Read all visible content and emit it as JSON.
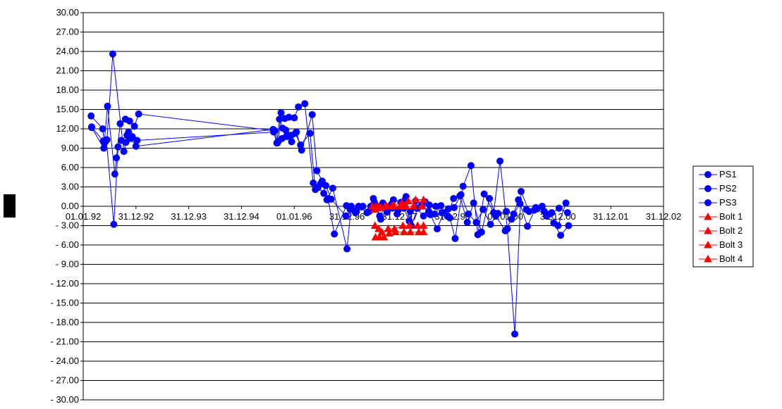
{
  "chart_data": {
    "type": "line",
    "title": "",
    "xlabel": "",
    "ylabel": "",
    "ylim": [
      -30,
      30
    ],
    "y_step": 3,
    "y_ticks": [
      "30.00",
      "27.00",
      "24.00",
      "21.00",
      "18.00",
      "15.00",
      "12.00",
      "9.00",
      "6.00",
      "3.00",
      "0.00",
      "- 3.00",
      "- 6.00",
      "- 9.00",
      "- 12.00",
      "- 15.00",
      "- 18.00",
      "- 21.00",
      "- 24.00",
      "- 27.00",
      "- 30.00"
    ],
    "x_ticks": [
      "01.01.92",
      "31.12.92",
      "31.12.93",
      "31.12.94",
      "01.01.96",
      "31.12.96",
      "31.12.97",
      "31.12.98",
      "01.01.00",
      "31.12.00",
      "31.12.01",
      "31.12.02"
    ],
    "x_tick_values": [
      1992.0,
      1993.0,
      1994.0,
      1995.0,
      1996.0,
      1997.0,
      1998.0,
      1999.0,
      2000.0,
      2001.0,
      2002.0,
      2003.0
    ],
    "xlim": [
      1992.0,
      2003.0
    ],
    "grid": "horizontal",
    "legend_position": "right",
    "series": [
      {
        "name": "PS1",
        "color": "#0000ff",
        "marker": "circle",
        "x": [
          1992.16,
          1992.39,
          1992.42,
          1992.45,
          1992.56,
          1992.77,
          1992.81,
          1992.86,
          1992.93,
          1993.02,
          1995.61,
          1995.67,
          1995.72,
          1995.78,
          1995.86,
          1995.95,
          1996.04,
          1996.14,
          1996.34,
          1996.43,
          1996.53,
          1996.62,
          1996.73,
          1997.0,
          1997.08,
          1997.18,
          1997.3,
          1997.45,
          1997.55,
          1997.68,
          1997.78,
          1997.88,
          1998.02,
          1998.12,
          1998.22,
          1998.34,
          1998.48,
          1998.58,
          1998.71,
          1998.83,
          1998.95,
          1999.05,
          1999.2,
          1999.35,
          1999.48,
          1999.6,
          1999.78,
          1999.9,
          2000.04,
          2000.18,
          2000.3,
          2000.45,
          2000.6,
          2000.78,
          2000.92,
          2001.05,
          2001.2
        ],
        "y": [
          12.2,
          9.0,
          10.0,
          10.3,
          23.6,
          8.5,
          9.9,
          11.5,
          10.8,
          10.2,
          11.5,
          9.8,
          13.5,
          12.1,
          10.8,
          10.0,
          11.5,
          8.7,
          14.2,
          5.5,
          3.9,
          1.0,
          2.8,
          -6.6,
          0.0,
          -0.8,
          0.0,
          0.0,
          0.0,
          0.5,
          -0.4,
          1.0,
          0.6,
          1.5,
          -3.0,
          -0.3,
          0.7,
          -1.3,
          -3.5,
          -1.0,
          -1.8,
          -5.0,
          3.1,
          6.3,
          -4.4,
          1.9,
          -1.0,
          7.0,
          -3.5,
          -19.8,
          2.3,
          -0.8,
          -0.4,
          -1.5,
          -2.6,
          -4.5,
          -3.0
        ]
      },
      {
        "name": "PS2",
        "color": "#0000ff",
        "marker": "circle",
        "x": [
          1992.15,
          1992.37,
          1992.4,
          1992.46,
          1992.6,
          1992.63,
          1992.7,
          1992.8,
          1992.88,
          1992.97,
          1993.05,
          1995.63,
          1995.7,
          1995.75,
          1995.82,
          1995.9,
          1996.0,
          1996.08,
          1996.2,
          1996.36,
          1996.45,
          1996.56,
          1996.64,
          1996.76,
          1996.99,
          1997.1,
          1997.22,
          1997.38,
          1997.5,
          1997.62,
          1997.74,
          1997.85,
          1997.95,
          1998.08,
          1998.18,
          1998.3,
          1998.42,
          1998.55,
          1998.66,
          1998.78,
          1998.9,
          1999.02,
          1999.14,
          1999.28,
          1999.4,
          1999.55,
          1999.7,
          1999.82,
          2000.0,
          2000.12,
          2000.25,
          2000.4,
          2000.55,
          2000.7,
          2000.85,
          2001.0,
          2001.15
        ],
        "y": [
          14.0,
          12.0,
          9.8,
          15.5,
          5.0,
          7.5,
          12.8,
          13.5,
          13.2,
          12.4,
          14.3,
          11.7,
          10.1,
          14.5,
          13.6,
          13.8,
          13.7,
          15.4,
          15.9,
          3.6,
          2.9,
          2.0,
          1.2,
          -4.3,
          0.1,
          -0.5,
          0.0,
          -1.0,
          1.2,
          -1.5,
          0.0,
          0.4,
          -1.2,
          -0.3,
          -2.3,
          0.8,
          0.3,
          -0.8,
          -1.2,
          0.1,
          -1.5,
          1.2,
          1.6,
          -2.5,
          0.5,
          -4.0,
          1.2,
          -1.5,
          -3.8,
          -2.0,
          1.0,
          -0.5,
          -0.6,
          0.0,
          -1.2,
          -3.0,
          0.5
        ]
      },
      {
        "name": "PS3",
        "color": "#0000ff",
        "marker": "circle",
        "x": [
          1992.16,
          1992.38,
          1992.44,
          1992.58,
          1992.66,
          1992.72,
          1992.83,
          1992.9,
          1993.0,
          1995.6,
          1995.68,
          1995.77,
          1995.84,
          1995.93,
          1996.02,
          1996.12,
          1996.3,
          1996.4,
          1996.5,
          1996.6,
          1996.7,
          1996.98,
          1997.06,
          1997.16,
          1997.28,
          1997.42,
          1997.52,
          1997.64,
          1997.76,
          1997.86,
          1997.97,
          1998.1,
          1998.2,
          1998.32,
          1998.45,
          1998.56,
          1998.68,
          1998.8,
          1998.92,
          1999.03,
          1999.16,
          1999.3,
          1999.45,
          1999.58,
          1999.72,
          1999.86,
          2000.02,
          2000.16,
          2000.28,
          2000.42,
          2000.58,
          2000.74,
          2000.88,
          2001.02,
          2001.18
        ],
        "y": [
          12.3,
          10.1,
          10.3,
          -2.8,
          9.2,
          10.2,
          11.0,
          10.5,
          9.3,
          11.9,
          9.8,
          10.5,
          11.8,
          11.0,
          11.3,
          9.5,
          11.3,
          2.6,
          3.5,
          3.2,
          1.1,
          -1.5,
          -0.5,
          -1.0,
          -0.1,
          -0.8,
          0.6,
          -2.0,
          -0.9,
          -0.3,
          -0.6,
          1.0,
          -0.8,
          -0.3,
          -1.5,
          0.2,
          0.0,
          -1.0,
          -0.4,
          -0.2,
          1.8,
          -1.2,
          -2.5,
          -0.5,
          -2.8,
          -1.1,
          -0.8,
          -1.2,
          0.4,
          -3.1,
          -0.2,
          -0.8,
          -1.0,
          -0.3,
          -1.0
        ]
      },
      {
        "name": "Bolt 1",
        "color": "#ff0000",
        "marker": "triangle",
        "x": [
          1997.48,
          1997.55,
          1997.6,
          1997.72,
          1997.85,
          1998.0,
          1998.12,
          1998.26,
          1998.42
        ],
        "y": [
          0.0,
          0.0,
          0.0,
          0.0,
          0.0,
          0.0,
          0.0,
          0.0,
          0.0
        ]
      },
      {
        "name": "Bolt 2",
        "color": "#ff0000",
        "marker": "triangle",
        "x": [
          1997.52,
          1997.58,
          1997.64,
          1997.76,
          1997.88,
          1998.04,
          1998.16,
          1998.3,
          1998.45
        ],
        "y": [
          -0.5,
          -0.3,
          -0.2,
          0.0,
          0.2,
          0.5,
          0.8,
          1.0,
          1.0
        ]
      },
      {
        "name": "Bolt 3",
        "color": "#ff0000",
        "marker": "triangle",
        "x": [
          1997.53,
          1997.6,
          1997.66,
          1997.78,
          1997.9,
          1998.06,
          1998.18,
          1998.34,
          1998.45
        ],
        "y": [
          -3.0,
          -3.5,
          -4.0,
          -3.5,
          -3.5,
          -3.0,
          -3.0,
          -3.0,
          -3.0
        ]
      },
      {
        "name": "Bolt 4",
        "color": "#ff0000",
        "marker": "triangle",
        "x": [
          1997.54,
          1997.62,
          1997.7,
          1997.8,
          1997.92,
          1998.08,
          1998.2,
          1998.36,
          1998.45
        ],
        "y": [
          -4.8,
          -4.8,
          -4.8,
          -4.2,
          -4.0,
          -4.0,
          -4.0,
          -4.0,
          -4.0
        ]
      }
    ]
  }
}
